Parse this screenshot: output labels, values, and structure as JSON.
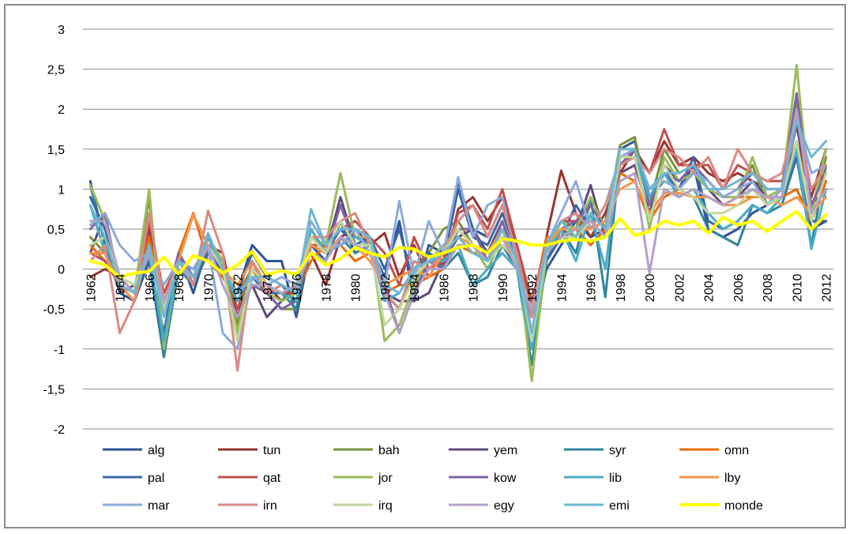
{
  "chart_data": {
    "type": "line",
    "categories": [
      "1962",
      null,
      "1964",
      null,
      "1966",
      null,
      "1968",
      null,
      "1970",
      null,
      "1972",
      null,
      "1974",
      null,
      "1976",
      null,
      "1978",
      null,
      "1980",
      null,
      "1982",
      null,
      "1984",
      null,
      "1986",
      null,
      "1988",
      null,
      "1990",
      null,
      "1992",
      null,
      "1994",
      null,
      "1996",
      null,
      "1998",
      null,
      "2000",
      null,
      "2002",
      null,
      "2004",
      null,
      "2006",
      null,
      "2008",
      null,
      "2010",
      null,
      "2012"
    ],
    "ylim": [
      -2,
      3
    ],
    "yticks": [
      -2,
      {
        "value": -1.5,
        "label": "-1,5"
      },
      -1,
      {
        "value": -0.5,
        "label": "-0,5"
      },
      0,
      {
        "value": 0.5,
        "label": "0,5"
      },
      1,
      {
        "value": 1.5,
        "label": "1,5"
      },
      2,
      {
        "value": 2.5,
        "label": "2,5"
      },
      3
    ],
    "grid": true,
    "legend": "bottom",
    "series": [
      {
        "name": "alg",
        "color": "#2e5597",
        "values": [
          1.1,
          0.3,
          -0.3,
          -0.4,
          0.1,
          -1.1,
          0.2,
          -0.3,
          0.3,
          -0.1,
          -0.3,
          0.3,
          0.1,
          0.1,
          -0.6,
          0.3,
          0.1,
          0.6,
          0.2,
          0.3,
          -0.1,
          0.6,
          -0.4,
          0.3,
          0.2,
          1.1,
          0.5,
          0.4,
          0.8,
          0.2,
          -0.8,
          0.0,
          0.3,
          0.6,
          0.4,
          0.5,
          1.5,
          1.6,
          0.9,
          1.2,
          1.0,
          1.3,
          0.5,
          0.4,
          0.5,
          0.7,
          0.8,
          0.9,
          1.5,
          0.5,
          0.6
        ]
      },
      {
        "name": "tun",
        "color": "#943634",
        "values": [
          -0.1,
          0.0,
          -0.1,
          -0.3,
          0.5,
          -0.4,
          0.1,
          0.0,
          0.3,
          0.2,
          -0.6,
          0.0,
          -0.2,
          -0.4,
          -0.2,
          0.2,
          -0.2,
          0.4,
          0.5,
          0.3,
          0.45,
          -0.1,
          0.3,
          -0.1,
          0.0,
          0.75,
          0.9,
          0.6,
          0.9,
          0.2,
          -0.5,
          0.4,
          1.23,
          0.7,
          0.4,
          0.7,
          1.2,
          1.5,
          1.2,
          1.6,
          1.3,
          1.4,
          1.2,
          1.1,
          1.2,
          1.1,
          1.0,
          1.0,
          1.6,
          0.9,
          1.5
        ]
      },
      {
        "name": "bah",
        "color": "#77933c",
        "values": [
          0.4,
          0.2,
          -0.2,
          -0.3,
          0.9,
          -1.0,
          0.2,
          -0.1,
          0.4,
          0.1,
          -0.7,
          0.1,
          -0.3,
          -0.5,
          -0.5,
          0.4,
          0.3,
          0.8,
          0.4,
          0.4,
          -0.3,
          -0.5,
          0.0,
          0.2,
          0.5,
          0.6,
          0.3,
          0.1,
          0.5,
          0.2,
          -1.0,
          0.2,
          0.5,
          0.4,
          0.8,
          0.5,
          1.55,
          1.65,
          0.8,
          1.5,
          1.2,
          1.3,
          1.1,
          0.9,
          1.0,
          1.3,
          0.8,
          0.9,
          2.1,
          0.7,
          1.4
        ]
      },
      {
        "name": "yem",
        "color": "#5f497a",
        "values": [
          0.2,
          0.7,
          -0.3,
          -0.2,
          0.3,
          -0.5,
          0.1,
          0.0,
          0.3,
          -0.1,
          -0.4,
          -0.2,
          -0.6,
          -0.4,
          -0.3,
          0.3,
          0.2,
          0.9,
          0.3,
          0.2,
          -0.3,
          -0.4,
          -0.4,
          -0.3,
          0.1,
          0.4,
          0.5,
          0.2,
          0.6,
          0.1,
          -0.6,
          0.2,
          0.4,
          0.5,
          1.05,
          0.4,
          1.2,
          1.3,
          0.7,
          1.3,
          1.1,
          1.2,
          1.0,
          0.8,
          0.9,
          1.1,
          0.9,
          1.0,
          1.8,
          0.8,
          1.0
        ]
      },
      {
        "name": "syr",
        "color": "#31849b",
        "values": [
          1.05,
          0.3,
          -0.2,
          -0.4,
          0.2,
          -1.1,
          0.0,
          -0.2,
          0.3,
          0.0,
          -0.4,
          -0.1,
          -0.3,
          -0.3,
          -0.5,
          0.5,
          0.2,
          0.4,
          0.2,
          0.3,
          -0.3,
          -0.5,
          0.0,
          0.2,
          0.0,
          0.2,
          -0.2,
          -0.1,
          0.3,
          0.0,
          -1.2,
          0.1,
          0.5,
          0.2,
          0.9,
          -0.35,
          1.4,
          1.5,
          0.9,
          1.1,
          1.0,
          0.9,
          0.5,
          0.4,
          0.3,
          0.8,
          0.7,
          0.8,
          1.4,
          0.3,
          1.3
        ]
      },
      {
        "name": "omn",
        "color": "#e46c0a",
        "values": [
          0.3,
          0.1,
          -0.2,
          -0.3,
          0.4,
          -0.5,
          0.2,
          0.7,
          0.1,
          -0.1,
          -0.3,
          0.0,
          -0.3,
          -0.2,
          -0.3,
          0.1,
          0.3,
          0.3,
          0.1,
          0.2,
          -0.3,
          -0.2,
          -0.2,
          -0.1,
          0.0,
          0.3,
          0.2,
          0.2,
          0.3,
          0.1,
          -0.5,
          0.4,
          0.4,
          0.5,
          0.3,
          0.5,
          1.2,
          1.1,
          0.6,
          0.9,
          1.0,
          0.9,
          0.9,
          0.8,
          0.9,
          0.9,
          0.9,
          0.9,
          1.0,
          0.6,
          1.1
        ]
      },
      {
        "name": "pal",
        "color": "#3a66a8",
        "values": [
          0.9,
          0.5,
          -0.1,
          -0.3,
          0.1,
          -0.8,
          0.2,
          -0.2,
          0.2,
          0.0,
          -0.3,
          0.2,
          -0.1,
          -0.2,
          -0.4,
          0.3,
          0.2,
          0.5,
          0.3,
          0.4,
          0.0,
          0.5,
          -0.2,
          0.2,
          0.1,
          1.0,
          0.4,
          0.3,
          0.7,
          0.2,
          -0.9,
          0.1,
          0.4,
          0.8,
          0.5,
          0.6,
          1.4,
          1.5,
          1.0,
          1.2,
          1.0,
          1.4,
          0.6,
          0.5,
          0.6,
          0.8,
          0.7,
          0.9,
          1.4,
          0.6,
          0.6
        ]
      },
      {
        "name": "qat",
        "color": "#c0504d",
        "values": [
          0.2,
          0.1,
          -0.2,
          -0.4,
          0.6,
          -0.3,
          0.1,
          -0.1,
          0.3,
          0.1,
          -0.5,
          0.0,
          -0.2,
          -0.3,
          -0.3,
          0.3,
          0.3,
          0.5,
          0.6,
          0.4,
          0.2,
          -0.2,
          0.4,
          0.0,
          0.1,
          0.7,
          0.8,
          0.5,
          1.0,
          0.3,
          -0.4,
          0.3,
          0.6,
          0.6,
          0.5,
          0.6,
          1.3,
          1.4,
          1.2,
          1.75,
          1.3,
          1.3,
          1.3,
          1.0,
          1.3,
          1.2,
          1.1,
          1.1,
          1.5,
          1.0,
          1.2
        ]
      },
      {
        "name": "jor",
        "color": "#9bbb59",
        "values": [
          1.05,
          0.6,
          -0.1,
          -0.3,
          1.0,
          -1.0,
          0.1,
          -0.2,
          0.4,
          0.1,
          -0.8,
          0.1,
          -0.3,
          -0.4,
          -0.3,
          0.4,
          0.3,
          1.2,
          0.4,
          0.4,
          -0.9,
          -0.7,
          -0.2,
          0.1,
          0.3,
          0.5,
          0.3,
          0.0,
          0.4,
          0.2,
          -1.4,
          0.2,
          0.6,
          0.5,
          0.9,
          0.5,
          1.5,
          1.5,
          0.5,
          1.4,
          1.1,
          1.2,
          1.0,
          0.9,
          0.9,
          1.4,
          0.9,
          1.0,
          2.55,
          0.7,
          1.5
        ]
      },
      {
        "name": "kow",
        "color": "#8064a2",
        "values": [
          0.5,
          0.7,
          -0.2,
          -0.3,
          0.3,
          -0.5,
          0.2,
          -0.1,
          0.3,
          0.0,
          -0.3,
          -0.2,
          -0.3,
          -0.5,
          -0.4,
          0.3,
          0.2,
          0.8,
          0.3,
          0.2,
          -0.2,
          -0.8,
          -0.3,
          0.1,
          0.0,
          0.5,
          0.5,
          0.1,
          0.6,
          0.1,
          -0.6,
          0.3,
          0.5,
          0.6,
          0.8,
          0.5,
          1.3,
          1.5,
          0.8,
          1.2,
          1.1,
          1.3,
          1.1,
          0.9,
          1.0,
          1.2,
          1.0,
          1.0,
          2.2,
          0.8,
          1.2
        ]
      },
      {
        "name": "lib",
        "color": "#4bacc6",
        "values": [
          0.8,
          0.2,
          -0.2,
          -0.3,
          0.2,
          -0.9,
          0.1,
          -0.2,
          0.4,
          0.0,
          -0.4,
          0.0,
          -0.2,
          -0.3,
          -0.4,
          0.5,
          0.2,
          0.3,
          0.4,
          0.3,
          -0.4,
          -0.3,
          0.0,
          0.1,
          0.1,
          0.3,
          -0.2,
          0.0,
          0.2,
          0.0,
          -1.0,
          0.2,
          0.5,
          0.1,
          0.7,
          0.0,
          1.4,
          1.4,
          0.9,
          1.2,
          0.9,
          1.0,
          0.7,
          0.5,
          0.6,
          0.8,
          0.7,
          0.9,
          1.5,
          0.25,
          1.0
        ]
      },
      {
        "name": "lby",
        "color": "#f79646",
        "values": [
          0.2,
          0.2,
          -0.2,
          -0.4,
          0.3,
          -0.4,
          0.1,
          0.68,
          0.3,
          0.0,
          -0.2,
          0.1,
          -0.2,
          -0.3,
          -0.2,
          0.3,
          0.2,
          0.4,
          0.3,
          0.1,
          -0.2,
          -0.1,
          0.0,
          -0.1,
          0.2,
          0.4,
          0.3,
          0.2,
          0.5,
          0.0,
          -0.5,
          0.3,
          0.5,
          0.5,
          0.5,
          0.6,
          1.0,
          1.1,
          0.7,
          0.95,
          0.95,
          0.9,
          0.9,
          0.8,
          0.8,
          0.9,
          0.9,
          0.8,
          0.9,
          0.7,
          0.9
        ]
      },
      {
        "name": "mar",
        "color": "#8eaadb",
        "values": [
          0.55,
          0.7,
          0.3,
          0.1,
          0.2,
          -0.2,
          0.1,
          0.0,
          0.3,
          -0.8,
          -1.0,
          -0.1,
          -0.2,
          -0.1,
          -0.2,
          0.6,
          0.3,
          0.3,
          0.5,
          0.2,
          -0.2,
          0.85,
          -0.1,
          0.6,
          0.2,
          1.15,
          0.4,
          0.8,
          0.9,
          0.1,
          -0.6,
          0.3,
          0.7,
          1.1,
          0.5,
          0.8,
          1.4,
          1.5,
          1.0,
          1.1,
          1.0,
          1.2,
          1.1,
          0.9,
          1.0,
          1.1,
          0.8,
          1.0,
          1.9,
          1.2,
          1.3
        ]
      },
      {
        "name": "irn",
        "color": "#da8a87",
        "values": [
          0.1,
          0.3,
          -0.8,
          -0.4,
          0.7,
          -0.4,
          0.1,
          -0.2,
          0.73,
          0.2,
          -1.27,
          0.1,
          -0.3,
          -0.2,
          -0.3,
          0.4,
          0.4,
          0.6,
          0.7,
          0.3,
          -0.3,
          -0.5,
          0.1,
          0.0,
          0.2,
          0.6,
          0.8,
          0.4,
          0.8,
          0.2,
          -0.6,
          0.3,
          0.6,
          0.7,
          0.5,
          0.8,
          1.3,
          1.4,
          1.2,
          1.5,
          1.4,
          1.2,
          1.4,
          1.0,
          1.5,
          1.2,
          1.1,
          1.2,
          1.9,
          1.0,
          1.3
        ]
      },
      {
        "name": "irq",
        "color": "#c3d69b",
        "values": [
          0.3,
          0.4,
          -0.1,
          -0.2,
          0.2,
          -0.5,
          0.1,
          -0.1,
          0.3,
          0.0,
          -0.9,
          0.0,
          -0.2,
          -0.3,
          -0.2,
          0.4,
          0.2,
          0.6,
          0.3,
          0.3,
          -0.7,
          -0.5,
          -0.1,
          0.1,
          0.2,
          0.5,
          0.3,
          0.1,
          0.3,
          0.1,
          -0.9,
          0.2,
          0.4,
          0.4,
          0.6,
          0.4,
          1.4,
          1.4,
          0.6,
          1.3,
          1.0,
          0.9,
          0.7,
          0.7,
          0.8,
          1.0,
          0.8,
          0.9,
          1.6,
          0.6,
          1.2
        ]
      },
      {
        "name": "egy",
        "color": "#b2a1c7",
        "values": [
          0.6,
          0.6,
          -0.1,
          -0.3,
          0.2,
          -0.4,
          0.0,
          -0.1,
          0.3,
          -0.2,
          -0.6,
          -0.2,
          -0.2,
          -0.3,
          -0.2,
          0.2,
          0.1,
          0.4,
          0.3,
          0.2,
          -0.3,
          -0.8,
          -0.3,
          0.0,
          0.0,
          0.3,
          0.3,
          0.1,
          0.4,
          0.0,
          -0.5,
          0.2,
          0.4,
          0.5,
          0.6,
          0.4,
          1.1,
          1.2,
          -0.05,
          1.0,
          0.9,
          1.0,
          0.9,
          0.8,
          0.9,
          1.0,
          0.9,
          0.9,
          2.0,
          0.7,
          1.0
        ]
      },
      {
        "name": "emi",
        "color": "#6fb7d2",
        "values": [
          0.8,
          0.4,
          -0.2,
          -0.3,
          0.3,
          -0.6,
          0.1,
          -0.1,
          0.45,
          0.0,
          -0.3,
          -0.1,
          -0.1,
          -0.2,
          -0.3,
          0.75,
          0.3,
          0.5,
          0.5,
          0.4,
          -0.2,
          -0.3,
          0.0,
          0.1,
          0.2,
          0.4,
          0.2,
          0.1,
          0.5,
          0.1,
          -0.8,
          0.3,
          0.6,
          0.4,
          0.7,
          0.5,
          1.5,
          1.5,
          1.0,
          1.2,
          1.2,
          1.3,
          1.0,
          1.0,
          1.1,
          1.2,
          1.0,
          1.0,
          1.85,
          1.4,
          1.6
        ]
      },
      {
        "name": "monde",
        "color": "#ffff00",
        "values": [
          0.1,
          0.05,
          -0.1,
          -0.05,
          -0.03,
          0.15,
          -0.07,
          0.17,
          0.1,
          -0.05,
          0.05,
          0.22,
          -0.07,
          -0.02,
          -0.07,
          0.2,
          0.05,
          0.13,
          0.27,
          0.2,
          0.15,
          0.27,
          0.25,
          0.15,
          0.2,
          0.27,
          0.3,
          0.2,
          0.38,
          0.35,
          0.3,
          0.3,
          0.35,
          0.37,
          0.35,
          0.4,
          0.63,
          0.42,
          0.47,
          0.6,
          0.55,
          0.6,
          0.45,
          0.65,
          0.55,
          0.6,
          0.47,
          0.6,
          0.72,
          0.5,
          0.68
        ]
      }
    ]
  }
}
